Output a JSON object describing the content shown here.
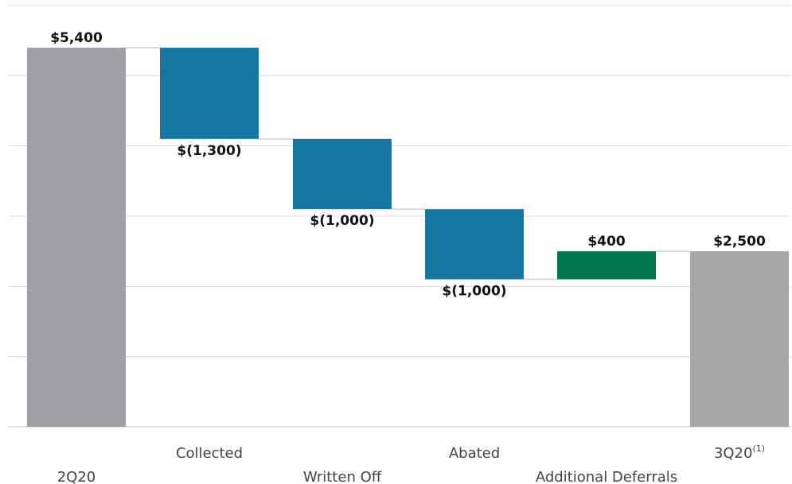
{
  "chart_data": {
    "type": "bar",
    "subtype": "waterfall",
    "categories": [
      "2Q20",
      "Collected",
      "Written Off",
      "Abated",
      "Additional Deferrals",
      "3Q20"
    ],
    "category_footnotes": [
      "",
      "",
      "",
      "",
      "",
      "(1)"
    ],
    "values": [
      5400,
      -1300,
      -1000,
      -1000,
      400,
      2500
    ],
    "value_labels": [
      "$5,400",
      "$(1,300)",
      "$(1,000)",
      "$(1,000)",
      "$400",
      "$2,500"
    ],
    "kinds": [
      "total",
      "delta",
      "delta",
      "delta",
      "delta",
      "total"
    ],
    "title": "",
    "xlabel": "",
    "ylabel": "",
    "ylim": [
      0,
      6000
    ],
    "y_gridline_step": 1000,
    "y_tick_labels_shown": false,
    "grid": true,
    "legend": "none",
    "colors": {
      "total_start": "#a09fa4",
      "total_end": "#a6a6a6",
      "decrease": "#1777a3",
      "increase": "#00784f",
      "grid": "#d9d9d9",
      "connector": "#d9d9d9"
    }
  }
}
